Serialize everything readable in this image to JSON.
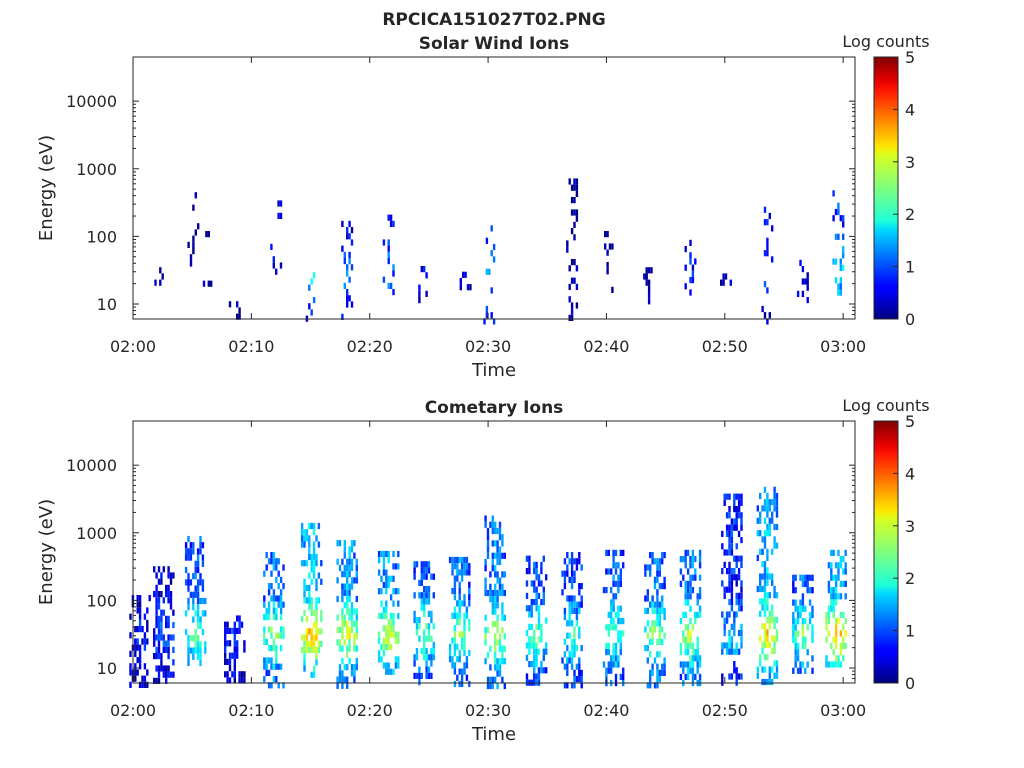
{
  "figure": {
    "filename": "RPCICA151027T02.PNG"
  },
  "chart_data": [
    {
      "type": "heatmap",
      "title": "Solar Wind Ions",
      "xlabel": "Time",
      "ylabel": "Energy (eV)",
      "x_ticks": [
        "02:00",
        "02:10",
        "02:20",
        "02:30",
        "02:40",
        "02:50",
        "03:00"
      ],
      "x_range": [
        "02:00",
        "03:01"
      ],
      "y_scale": "log",
      "y_ticks": [
        10,
        100,
        1000,
        10000
      ],
      "y_range": [
        6,
        45000
      ],
      "colorbar": {
        "label": "Log counts",
        "range": [
          0,
          5
        ],
        "ticks": [
          0,
          1,
          2,
          3,
          4,
          5
        ],
        "colormap": "jet"
      },
      "grid": false,
      "bursts_minutes": [
        {
          "t": 2.0,
          "e": [
            18,
            35
          ],
          "c": 0.1
        },
        {
          "t": 5.0,
          "e": [
            40,
            450
          ],
          "c": 0.1
        },
        {
          "t": 6.3,
          "e": [
            22,
            120
          ],
          "c": 0.1
        },
        {
          "t": 8.5,
          "e": [
            6,
            11
          ],
          "c": 0.1
        },
        {
          "t": 12.0,
          "e": [
            15,
            420
          ],
          "c": 0.6
        },
        {
          "t": 15.0,
          "e": [
            6,
            45
          ],
          "c": 1.6
        },
        {
          "t": 18.0,
          "e": [
            6,
            170
          ],
          "c": 1.2
        },
        {
          "t": 21.5,
          "e": [
            15,
            210
          ],
          "c": 1.1
        },
        {
          "t": 24.5,
          "e": [
            12,
            45
          ],
          "c": 0.5
        },
        {
          "t": 28.0,
          "e": [
            15,
            30
          ],
          "c": 0.3
        },
        {
          "t": 30.0,
          "e": [
            6,
            180
          ],
          "c": 1.3
        },
        {
          "t": 37.0,
          "e": [
            6,
            720
          ],
          "c": 0.2
        },
        {
          "t": 40.0,
          "e": [
            15,
            120
          ],
          "c": 0.2
        },
        {
          "t": 43.5,
          "e": [
            12,
            35
          ],
          "c": 0.2
        },
        {
          "t": 47.0,
          "e": [
            15,
            110
          ],
          "c": 0.6
        },
        {
          "t": 50.0,
          "e": [
            15,
            35
          ],
          "c": 0.3
        },
        {
          "t": 53.5,
          "e": [
            6,
            340
          ],
          "c": 0.9
        },
        {
          "t": 56.5,
          "e": [
            12,
            45
          ],
          "c": 0.6
        },
        {
          "t": 59.5,
          "e": [
            15,
            480
          ],
          "c": 1.7
        }
      ]
    },
    {
      "type": "heatmap",
      "title": "Cometary Ions",
      "xlabel": "Time",
      "ylabel": "Energy (eV)",
      "x_ticks": [
        "02:00",
        "02:10",
        "02:20",
        "02:30",
        "02:40",
        "02:50",
        "03:00"
      ],
      "x_range": [
        "02:00",
        "03:01"
      ],
      "y_scale": "log",
      "y_ticks": [
        10,
        100,
        1000,
        10000
      ],
      "y_range": [
        6,
        45000
      ],
      "colorbar": {
        "label": "Log counts",
        "range": [
          0,
          5
        ],
        "ticks": [
          0,
          1,
          2,
          3,
          4,
          5
        ],
        "colormap": "jet"
      },
      "grid": false,
      "bursts_minutes": [
        {
          "t": 0.5,
          "e": [
            6,
            120
          ],
          "c": 0.6
        },
        {
          "t": 2.5,
          "e": [
            6,
            320
          ],
          "c": 0.9
        },
        {
          "t": 5.2,
          "e": [
            12,
            900
          ],
          "c": 2.0
        },
        {
          "t": 8.5,
          "e": [
            6,
            60
          ],
          "c": 0.7
        },
        {
          "t": 11.8,
          "e": [
            6,
            520
          ],
          "c": 2.2
        },
        {
          "t": 15.0,
          "e": [
            8,
            1400
          ],
          "c": 3.0
        },
        {
          "t": 18.0,
          "e": [
            6,
            780
          ],
          "c": 2.6
        },
        {
          "t": 21.5,
          "e": [
            8,
            540
          ],
          "c": 2.6
        },
        {
          "t": 24.5,
          "e": [
            6,
            380
          ],
          "c": 2.0
        },
        {
          "t": 27.5,
          "e": [
            6,
            440
          ],
          "c": 2.2
        },
        {
          "t": 30.5,
          "e": [
            6,
            1800
          ],
          "c": 2.4
        },
        {
          "t": 34.0,
          "e": [
            6,
            460
          ],
          "c": 2.0
        },
        {
          "t": 37.0,
          "e": [
            6,
            520
          ],
          "c": 1.8
        },
        {
          "t": 40.5,
          "e": [
            6,
            560
          ],
          "c": 2.0
        },
        {
          "t": 44.0,
          "e": [
            6,
            520
          ],
          "c": 2.2
        },
        {
          "t": 47.0,
          "e": [
            6,
            560
          ],
          "c": 2.4
        },
        {
          "t": 50.5,
          "e": [
            6,
            3800
          ],
          "c": 1.5
        },
        {
          "t": 53.5,
          "e": [
            6,
            4800
          ],
          "c": 2.8
        },
        {
          "t": 56.5,
          "e": [
            10,
            240
          ],
          "c": 2.1
        },
        {
          "t": 59.3,
          "e": [
            12,
            560
          ],
          "c": 3.0
        }
      ]
    }
  ]
}
